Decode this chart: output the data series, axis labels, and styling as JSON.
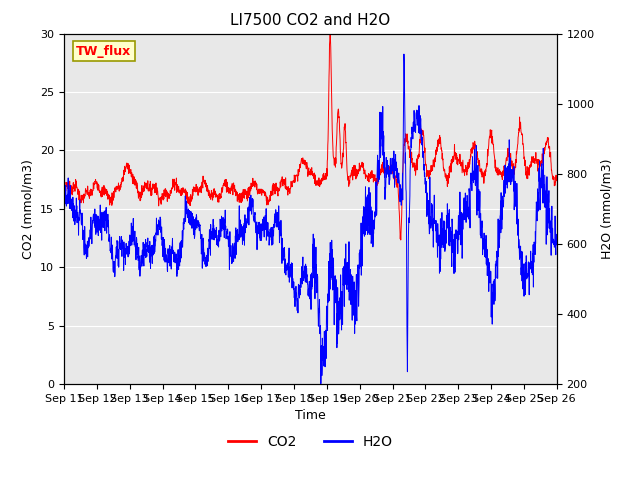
{
  "title": "LI7500 CO2 and H2O",
  "xlabel": "Time",
  "ylabel_left": "CO2 (mmol/m3)",
  "ylabel_right": "H2O (mmol/m3)",
  "ylim_left": [
    0,
    30
  ],
  "ylim_right": [
    200,
    1200
  ],
  "annotation_text": "TW_flux",
  "annotation_bbox_facecolor": "#ffffcc",
  "annotation_bbox_edgecolor": "#999900",
  "legend_labels": [
    "CO2",
    "H2O"
  ],
  "legend_colors": [
    "#ff0000",
    "#0000ff"
  ],
  "background_color": "#e8e8e8",
  "figure_color": "#ffffff",
  "title_fontsize": 11,
  "label_fontsize": 9,
  "tick_fontsize": 8,
  "grid_color": "#ffffff",
  "n_points": 2000
}
